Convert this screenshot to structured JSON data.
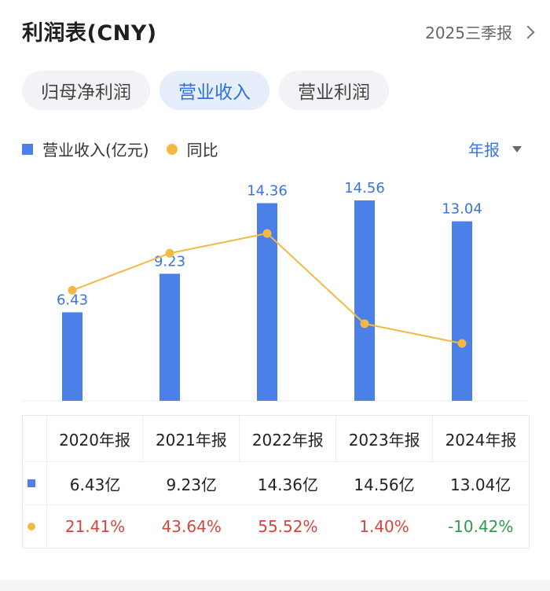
{
  "header": {
    "title": "利润表(CNY)",
    "period": "2025三季报"
  },
  "tabs": [
    {
      "label": "归母净利润",
      "active": false
    },
    {
      "label": "营业收入",
      "active": true
    },
    {
      "label": "营业利润",
      "active": false
    }
  ],
  "legend": {
    "bar_label": "营业收入(亿元)",
    "line_label": "同比"
  },
  "period_select": {
    "value": "年报"
  },
  "colors": {
    "bar": "#4a80e8",
    "line": "#f2b944",
    "accent": "#2e6fe0",
    "positive": "#d6453d",
    "negative": "#2b9a53"
  },
  "chart_data": {
    "type": "bar",
    "categories": [
      "2020年报",
      "2021年报",
      "2022年报",
      "2023年报",
      "2024年报"
    ],
    "series": [
      {
        "name": "营业收入(亿元)",
        "type": "bar",
        "values": [
          6.43,
          9.23,
          14.36,
          14.56,
          13.04
        ],
        "labels": [
          "6.43",
          "9.23",
          "14.36",
          "14.56",
          "13.04"
        ]
      },
      {
        "name": "同比",
        "type": "line",
        "values": [
          21.41,
          43.64,
          55.52,
          1.4,
          -10.42
        ]
      }
    ],
    "grid": false
  },
  "table": {
    "headers": [
      "2020年报",
      "2021年报",
      "2022年报",
      "2023年报",
      "2024年报"
    ],
    "revenue_row": [
      "6.43亿",
      "9.23亿",
      "14.36亿",
      "14.56亿",
      "13.04亿"
    ],
    "yoy_row": [
      "21.41%",
      "43.64%",
      "55.52%",
      "1.40%",
      "-10.42%"
    ]
  }
}
